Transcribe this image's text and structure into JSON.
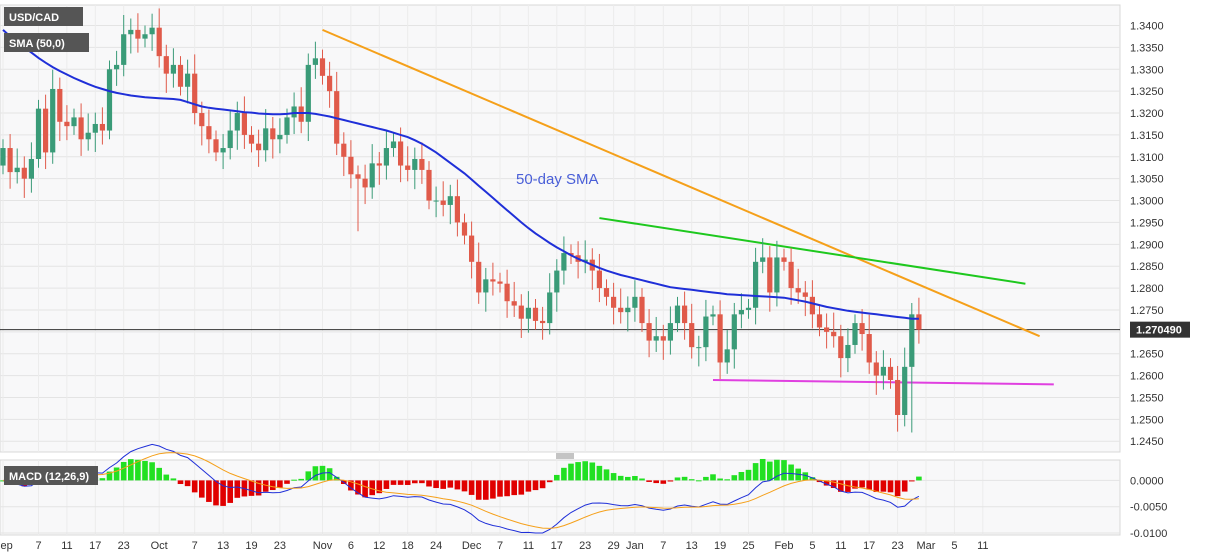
{
  "chart_data": [
    {
      "type": "candlestick",
      "title": "USD/CAD",
      "indicator_label": "SMA (50,0)",
      "annotation": "50-day SMA",
      "price_label": "1.270490",
      "price_level": 1.2705,
      "ylim": [
        1.243,
        1.344
      ],
      "y_ticks": [
        "1.3400",
        "1.3350",
        "1.3300",
        "1.3250",
        "1.3200",
        "1.3150",
        "1.3100",
        "1.3050",
        "1.3000",
        "1.2950",
        "1.2900",
        "1.2850",
        "1.2800",
        "1.2750",
        "1.2700",
        "1.2650",
        "1.2600",
        "1.2550",
        "1.2500",
        "1.2450"
      ],
      "x_ticks": [
        {
          "label": "Sep",
          "i": 0
        },
        {
          "label": "7",
          "i": 5
        },
        {
          "label": "11",
          "i": 9
        },
        {
          "label": "17",
          "i": 13
        },
        {
          "label": "23",
          "i": 17
        },
        {
          "label": "Oct",
          "i": 22
        },
        {
          "label": "7",
          "i": 27
        },
        {
          "label": "13",
          "i": 31
        },
        {
          "label": "19",
          "i": 35
        },
        {
          "label": "23",
          "i": 39
        },
        {
          "label": "Nov",
          "i": 45
        },
        {
          "label": "6",
          "i": 49
        },
        {
          "label": "12",
          "i": 53
        },
        {
          "label": "18",
          "i": 57
        },
        {
          "label": "24",
          "i": 61
        },
        {
          "label": "Dec",
          "i": 66
        },
        {
          "label": "7",
          "i": 70
        },
        {
          "label": "11",
          "i": 74
        },
        {
          "label": "17",
          "i": 78
        },
        {
          "label": "23",
          "i": 82
        },
        {
          "label": "29",
          "i": 86
        },
        {
          "label": "Jan",
          "i": 89
        },
        {
          "label": "7",
          "i": 93
        },
        {
          "label": "13",
          "i": 97
        },
        {
          "label": "19",
          "i": 101
        },
        {
          "label": "25",
          "i": 105
        },
        {
          "label": "Feb",
          "i": 110
        },
        {
          "label": "5",
          "i": 114
        },
        {
          "label": "11",
          "i": 118
        },
        {
          "label": "17",
          "i": 122
        },
        {
          "label": "23",
          "i": 126
        },
        {
          "label": "Mar",
          "i": 130
        },
        {
          "label": "5",
          "i": 134
        },
        {
          "label": "11",
          "i": 138
        }
      ],
      "closes": [
        1.312,
        1.3065,
        1.3075,
        1.305,
        1.3095,
        1.321,
        1.311,
        1.3255,
        1.318,
        1.317,
        1.319,
        1.314,
        1.3155,
        1.3175,
        1.316,
        1.33,
        1.331,
        1.338,
        1.339,
        1.337,
        1.338,
        1.3395,
        1.333,
        1.329,
        1.331,
        1.326,
        1.329,
        1.32,
        1.317,
        1.314,
        1.311,
        1.312,
        1.316,
        1.32,
        1.315,
        1.313,
        1.3115,
        1.3165,
        1.314,
        1.315,
        1.319,
        1.3215,
        1.318,
        1.331,
        1.3325,
        1.3285,
        1.325,
        1.313,
        1.31,
        1.306,
        1.305,
        1.303,
        1.3085,
        1.308,
        1.312,
        1.3135,
        1.308,
        1.307,
        1.3095,
        1.307,
        1.3,
        1.3,
        1.299,
        1.301,
        1.295,
        1.292,
        1.286,
        1.279,
        1.282,
        1.2815,
        1.281,
        1.277,
        1.276,
        1.273,
        1.2755,
        1.2725,
        1.272,
        1.279,
        1.284,
        1.288,
        1.2875,
        1.286,
        1.2865,
        1.284,
        1.28,
        1.278,
        1.2755,
        1.2745,
        1.2755,
        1.278,
        1.272,
        1.268,
        1.269,
        1.268,
        1.272,
        1.276,
        1.272,
        1.2665,
        1.2665,
        1.2735,
        1.274,
        1.263,
        1.266,
        1.274,
        1.275,
        1.2755,
        1.286,
        1.287,
        1.279,
        1.287,
        1.286,
        1.28,
        1.279,
        1.278,
        1.274,
        1.271,
        1.27,
        1.269,
        1.264,
        1.267,
        1.272,
        1.2695,
        1.263,
        1.26,
        1.262,
        1.259,
        1.251,
        1.262,
        1.274,
        1.2705
      ],
      "opens": [
        1.308,
        1.312,
        1.3065,
        1.3075,
        1.305,
        1.3095,
        1.321,
        1.311,
        1.3255,
        1.318,
        1.317,
        1.319,
        1.314,
        1.3155,
        1.3175,
        1.316,
        1.33,
        1.331,
        1.338,
        1.339,
        1.337,
        1.338,
        1.3395,
        1.333,
        1.329,
        1.331,
        1.326,
        1.329,
        1.32,
        1.317,
        1.314,
        1.311,
        1.312,
        1.316,
        1.32,
        1.315,
        1.313,
        1.3115,
        1.3165,
        1.314,
        1.315,
        1.319,
        1.3215,
        1.318,
        1.331,
        1.3325,
        1.3285,
        1.325,
        1.313,
        1.31,
        1.306,
        1.305,
        1.303,
        1.3085,
        1.308,
        1.312,
        1.3135,
        1.308,
        1.307,
        1.3095,
        1.307,
        1.3,
        1.3,
        1.299,
        1.301,
        1.295,
        1.292,
        1.286,
        1.279,
        1.282,
        1.2815,
        1.281,
        1.277,
        1.276,
        1.273,
        1.2755,
        1.2725,
        1.272,
        1.279,
        1.284,
        1.288,
        1.2875,
        1.286,
        1.2865,
        1.284,
        1.28,
        1.278,
        1.2755,
        1.2745,
        1.2755,
        1.278,
        1.272,
        1.268,
        1.269,
        1.268,
        1.272,
        1.276,
        1.272,
        1.2665,
        1.2665,
        1.2735,
        1.274,
        1.263,
        1.266,
        1.274,
        1.275,
        1.2755,
        1.286,
        1.287,
        1.279,
        1.287,
        1.286,
        1.28,
        1.279,
        1.278,
        1.274,
        1.271,
        1.27,
        1.269,
        1.264,
        1.267,
        1.272,
        1.2695,
        1.263,
        1.26,
        1.262,
        1.259,
        1.251,
        1.262,
        1.274
      ],
      "sma50": [
        1.339,
        1.3375,
        1.3362,
        1.335,
        1.3338,
        1.3326,
        1.3315,
        1.3305,
        1.3296,
        1.3288,
        1.328,
        1.3273,
        1.3266,
        1.326,
        1.3255,
        1.325,
        1.3246,
        1.3243,
        1.324,
        1.3238,
        1.3236,
        1.3235,
        1.3234,
        1.3233,
        1.3232,
        1.323,
        1.3225,
        1.322,
        1.3215,
        1.3212,
        1.321,
        1.3208,
        1.3206,
        1.3204,
        1.3202,
        1.3201,
        1.3199,
        1.3198,
        1.3197,
        1.3197,
        1.3198,
        1.32,
        1.32,
        1.32,
        1.3198,
        1.3195,
        1.3192,
        1.3188,
        1.3184,
        1.318,
        1.3176,
        1.3172,
        1.3168,
        1.3164,
        1.316,
        1.3155,
        1.315,
        1.3145,
        1.3138,
        1.313,
        1.312,
        1.311,
        1.3098,
        1.3086,
        1.3074,
        1.3062,
        1.3048,
        1.3034,
        1.302,
        1.3006,
        1.2992,
        1.2978,
        1.2964,
        1.295,
        1.2937,
        1.2925,
        1.2914,
        1.2903,
        1.2893,
        1.2884,
        1.2875,
        1.2867,
        1.286,
        1.2853,
        1.2846,
        1.284,
        1.2835,
        1.283,
        1.2826,
        1.2822,
        1.2818,
        1.2814,
        1.281,
        1.2806,
        1.2802,
        1.28,
        1.2798,
        1.2796,
        1.2794,
        1.2792,
        1.279,
        1.2788,
        1.2786,
        1.2785,
        1.2784,
        1.2783,
        1.2782,
        1.2781,
        1.278,
        1.2779,
        1.2778,
        1.2775,
        1.2772,
        1.2769,
        1.2765,
        1.2761,
        1.2757,
        1.2754,
        1.2751,
        1.2748,
        1.2746,
        1.2744,
        1.2742,
        1.274,
        1.2738,
        1.2736,
        1.2734,
        1.2732,
        1.273,
        1.273
      ],
      "lines": [
        {
          "color": "#f5a01a",
          "from": {
            "i": 45,
            "y": 1.339
          },
          "to": {
            "i": 146,
            "y": 1.269
          }
        },
        {
          "color": "#1ec81e",
          "from": {
            "i": 84,
            "y": 1.296
          },
          "to": {
            "i": 144,
            "y": 1.281
          }
        },
        {
          "color": "#e040e0",
          "from": {
            "i": 100,
            "y": 1.259
          },
          "to": {
            "i": 148,
            "y": 1.258
          }
        }
      ],
      "colors": {
        "up": "#3a9b78",
        "down": "#e05a4a",
        "sma": "#1f2fd8",
        "badge": "#555555",
        "price": "#333333"
      }
    },
    {
      "type": "histogram",
      "title": "MACD (12,26,9)",
      "ylim": [
        -0.01,
        0.0035
      ],
      "y_ticks": [
        "0.0000",
        "-0.0050",
        "-0.0100"
      ],
      "colors": {
        "pos": "#22e022",
        "neg": "#e00000",
        "macd": "#1f2fd8",
        "signal": "#f5a01a"
      }
    }
  ]
}
